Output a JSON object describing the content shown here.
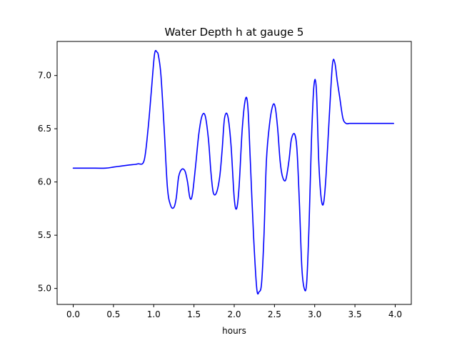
{
  "chart_data": {
    "type": "line",
    "title": "Water Depth h at gauge 5",
    "xlabel": "hours",
    "ylabel": "",
    "xlim": [
      -0.2,
      4.2
    ],
    "ylim": [
      4.85,
      7.32
    ],
    "grid": false,
    "xticks": [
      0.0,
      0.5,
      1.0,
      1.5,
      2.0,
      2.5,
      3.0,
      3.5,
      4.0
    ],
    "xtick_labels": [
      "0.0",
      "0.5",
      "1.0",
      "1.5",
      "2.0",
      "2.5",
      "3.0",
      "3.5",
      "4.0"
    ],
    "yticks": [
      5.0,
      5.5,
      6.0,
      6.5,
      7.0
    ],
    "ytick_labels": [
      "5.0",
      "5.5",
      "6.0",
      "6.5",
      "7.0"
    ],
    "series": [
      {
        "color": "#0000ff",
        "x": [
          0.0,
          0.2,
          0.4,
          0.5,
          0.6,
          0.7,
          0.8,
          0.88,
          0.93,
          0.97,
          1.01,
          1.04,
          1.06,
          1.09,
          1.13,
          1.17,
          1.21,
          1.25,
          1.28,
          1.31,
          1.35,
          1.39,
          1.42,
          1.45,
          1.48,
          1.52,
          1.56,
          1.6,
          1.64,
          1.68,
          1.71,
          1.74,
          1.78,
          1.82,
          1.85,
          1.88,
          1.92,
          1.96,
          2.0,
          2.03,
          2.06,
          2.1,
          2.14,
          2.17,
          2.2,
          2.24,
          2.28,
          2.31,
          2.34,
          2.37,
          2.4,
          2.44,
          2.48,
          2.51,
          2.54,
          2.57,
          2.6,
          2.64,
          2.68,
          2.71,
          2.75,
          2.78,
          2.81,
          2.84,
          2.87,
          2.9,
          2.93,
          2.96,
          2.99,
          3.02,
          3.05,
          3.08,
          3.11,
          3.14,
          3.18,
          3.22,
          3.25,
          3.28,
          3.31,
          3.35,
          3.39,
          3.43,
          3.45,
          3.47,
          3.49,
          3.52,
          3.55,
          3.59,
          3.63,
          3.65,
          3.67,
          3.71,
          3.75,
          3.78,
          3.8,
          3.82,
          3.85,
          3.89,
          3.92,
          3.95,
          3.98
        ],
        "y": [
          6.13,
          6.13,
          6.13,
          6.14,
          6.15,
          6.16,
          6.17,
          6.2,
          6.5,
          6.85,
          7.2,
          7.22,
          7.18,
          7.0,
          6.5,
          5.95,
          5.78,
          5.76,
          5.85,
          6.05,
          6.12,
          6.1,
          6.0,
          5.85,
          5.88,
          6.15,
          6.45,
          6.62,
          6.62,
          6.4,
          6.1,
          5.9,
          5.9,
          6.05,
          6.3,
          6.6,
          6.62,
          6.35,
          5.85,
          5.75,
          5.95,
          6.5,
          6.78,
          6.7,
          6.2,
          5.5,
          5.0,
          4.97,
          5.05,
          5.5,
          6.2,
          6.55,
          6.72,
          6.7,
          6.5,
          6.2,
          6.05,
          6.02,
          6.2,
          6.4,
          6.45,
          6.3,
          5.8,
          5.2,
          5.0,
          5.05,
          5.6,
          6.4,
          6.9,
          6.88,
          6.2,
          5.85,
          5.8,
          6.05,
          6.6,
          7.1,
          7.12,
          6.95,
          6.8,
          6.6,
          6.55,
          6.55,
          6.55,
          6.55,
          6.55,
          6.55,
          6.55,
          6.55,
          6.55,
          6.55,
          6.55,
          6.55,
          6.55,
          6.55,
          6.55,
          6.55,
          6.55,
          6.55,
          6.55,
          6.55,
          6.55
        ]
      }
    ]
  }
}
